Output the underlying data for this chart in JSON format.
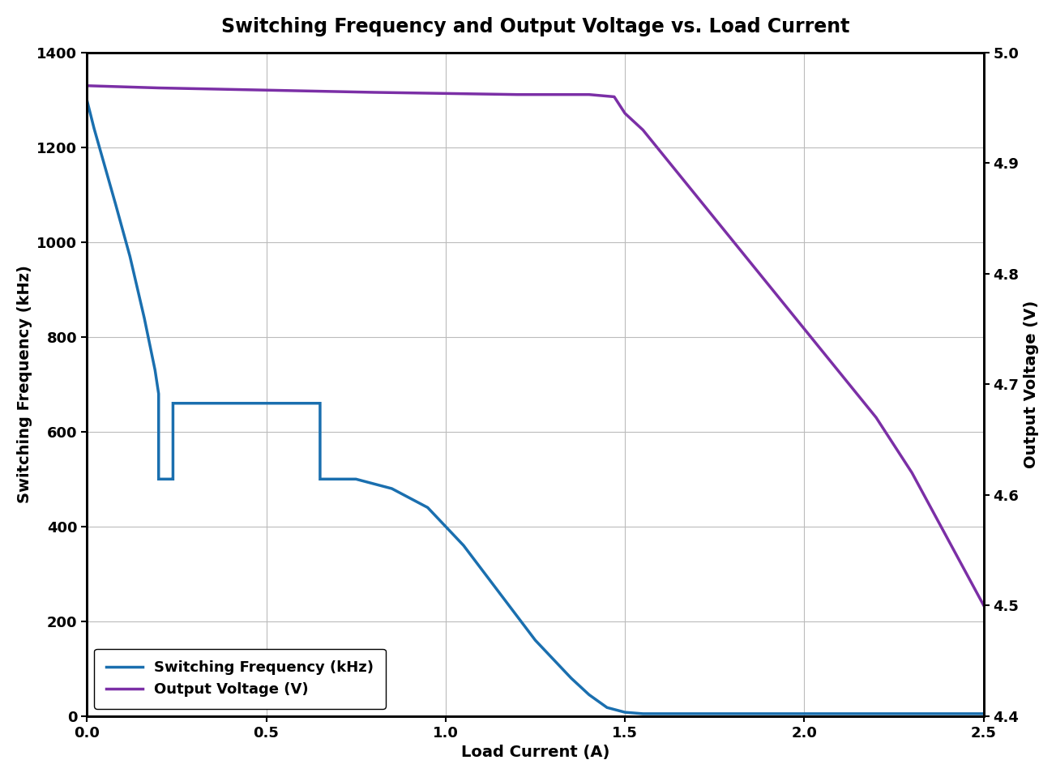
{
  "title": "Switching Frequency and Output Voltage vs. Load Current",
  "xlabel": "Load Current (A)",
  "ylabel_left": "Switching Frequency (kHz)",
  "ylabel_right": "Output Voltage (V)",
  "xlim": [
    0,
    2.5
  ],
  "ylim_left": [
    0,
    1400
  ],
  "ylim_right": [
    4.4,
    5.0
  ],
  "yticks_left": [
    0,
    200,
    400,
    600,
    800,
    1000,
    1200,
    1400
  ],
  "yticks_right": [
    4.4,
    4.5,
    4.6,
    4.7,
    4.8,
    4.9,
    5.0
  ],
  "xticks": [
    0,
    0.5,
    1.0,
    1.5,
    2.0,
    2.5
  ],
  "freq_x": [
    0.0,
    0.02,
    0.05,
    0.08,
    0.12,
    0.16,
    0.19,
    0.2,
    0.2,
    0.21,
    0.22,
    0.23,
    0.235,
    0.24,
    0.24,
    0.27,
    0.3,
    0.35,
    0.4,
    0.5,
    0.6,
    0.65,
    0.65,
    0.66,
    0.67,
    0.67,
    0.7,
    0.72,
    0.74,
    0.75,
    0.75,
    0.8,
    0.85,
    0.9,
    0.95,
    1.0,
    1.05,
    1.1,
    1.15,
    1.2,
    1.25,
    1.3,
    1.35,
    1.4,
    1.45,
    1.5,
    1.55,
    1.6,
    1.8,
    2.0,
    2.2,
    2.5
  ],
  "freq_y": [
    1300,
    1240,
    1160,
    1080,
    970,
    840,
    730,
    680,
    500,
    500,
    500,
    500,
    500,
    500,
    660,
    660,
    660,
    660,
    660,
    660,
    660,
    660,
    500,
    500,
    500,
    500,
    500,
    500,
    500,
    500,
    500,
    490,
    480,
    460,
    440,
    400,
    360,
    310,
    260,
    210,
    160,
    120,
    80,
    45,
    18,
    8,
    5,
    5,
    5,
    5,
    5,
    5
  ],
  "volt_x": [
    0,
    0.2,
    0.5,
    0.8,
    1.0,
    1.2,
    1.4,
    1.47,
    1.5,
    1.55,
    1.6,
    1.7,
    1.8,
    1.9,
    2.0,
    2.1,
    2.2,
    2.3,
    2.4,
    2.5
  ],
  "volt_y": [
    4.97,
    4.968,
    4.966,
    4.964,
    4.963,
    4.962,
    4.962,
    4.96,
    4.945,
    4.93,
    4.91,
    4.87,
    4.83,
    4.79,
    4.75,
    4.71,
    4.67,
    4.62,
    4.56,
    4.5
  ],
  "freq_color": "#1a6faf",
  "volt_color": "#7b2fa6",
  "freq_label": "Switching Frequency (kHz)",
  "volt_label": "Output Voltage (V)",
  "grid_color": "#bbbbbb",
  "bg_color": "#ffffff",
  "title_fontsize": 17,
  "label_fontsize": 14,
  "tick_fontsize": 13,
  "legend_fontsize": 13,
  "line_width": 2.5
}
